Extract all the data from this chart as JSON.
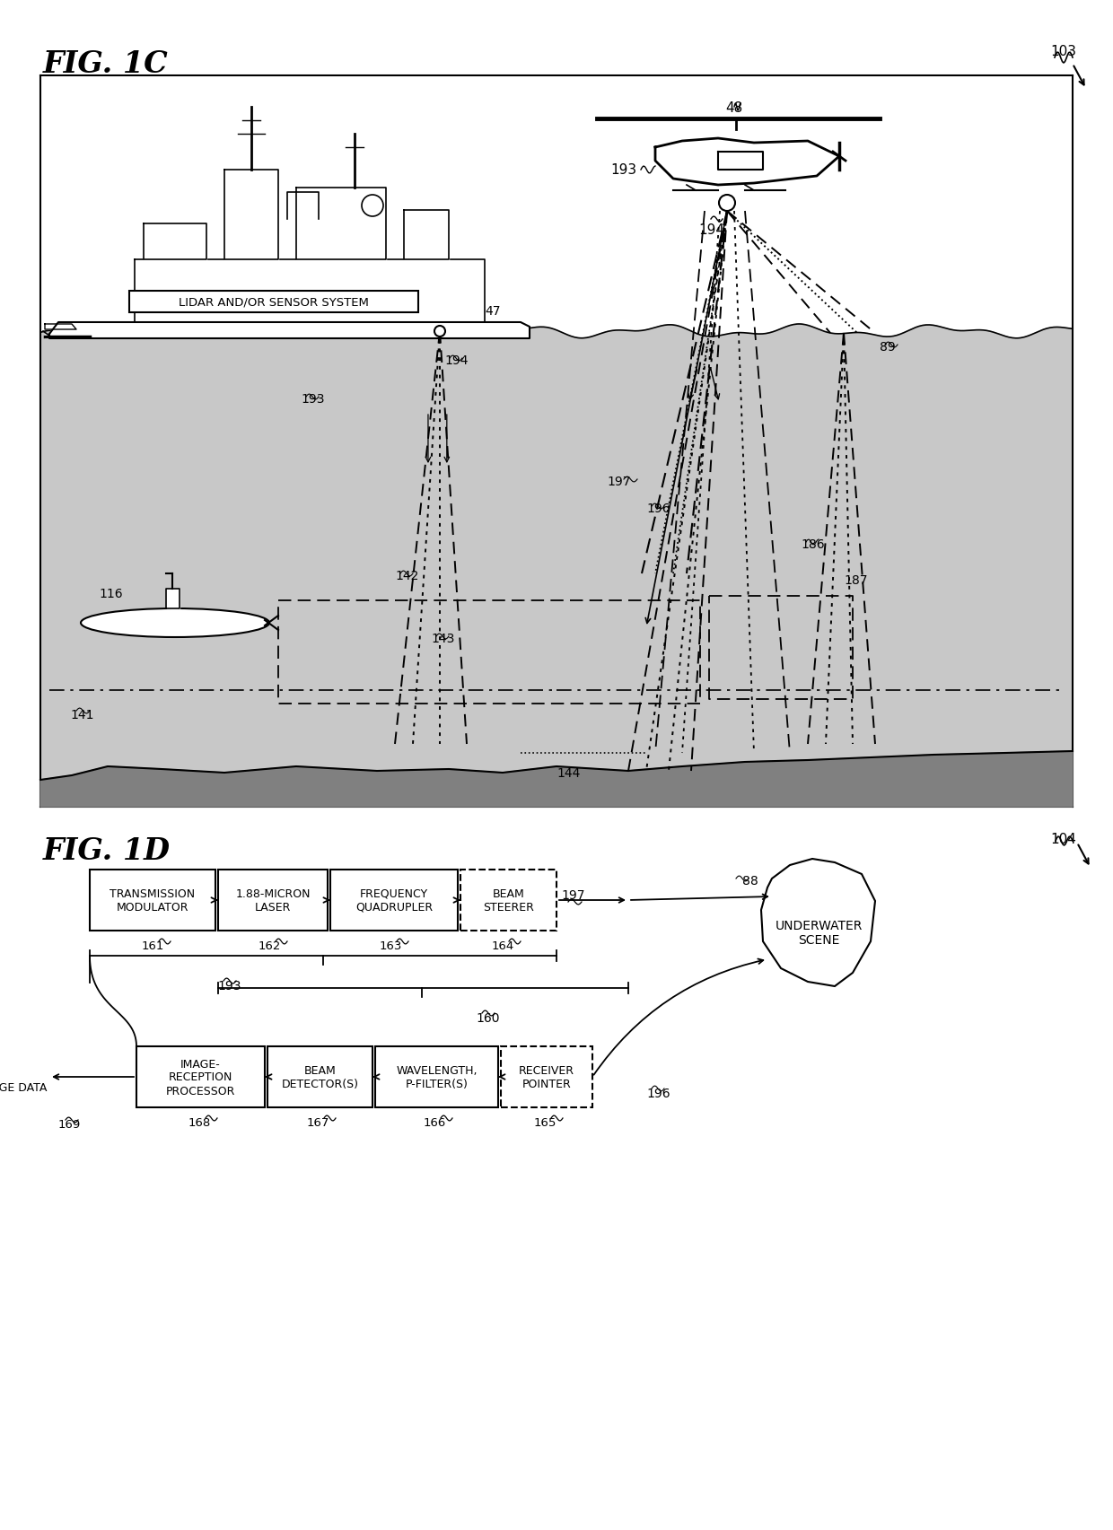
{
  "fig_title_1c": "FIG. 1C",
  "fig_title_1d": "FIG. 1D",
  "bg_color": "#ffffff",
  "water_color": "#c8c8c8",
  "seafloor_color": "#808080",
  "line_color": "#000000",
  "box_lidar": "LIDAR AND/OR SENSOR SYSTEM",
  "box_transmission": "TRANSMISSION\nMODULATOR",
  "box_laser": "1.88-MICRON\nLASER",
  "box_quadrupler": "FREQUENCY\nQUADRUPLER",
  "box_steerer": "BEAM\nSTEERER",
  "box_image_reception": "IMAGE-\nRECEPTION\nPROCESSOR",
  "box_beam_detector": "BEAM\nDETECTOR(S)",
  "box_wavelength": "WAVELENGTH,\nP-FILTER(S)",
  "box_receiver": "RECEIVER\nPOINTER",
  "text_underwater": "UNDERWATER\nSCENE",
  "text_image_data": "IMAGE DATA"
}
